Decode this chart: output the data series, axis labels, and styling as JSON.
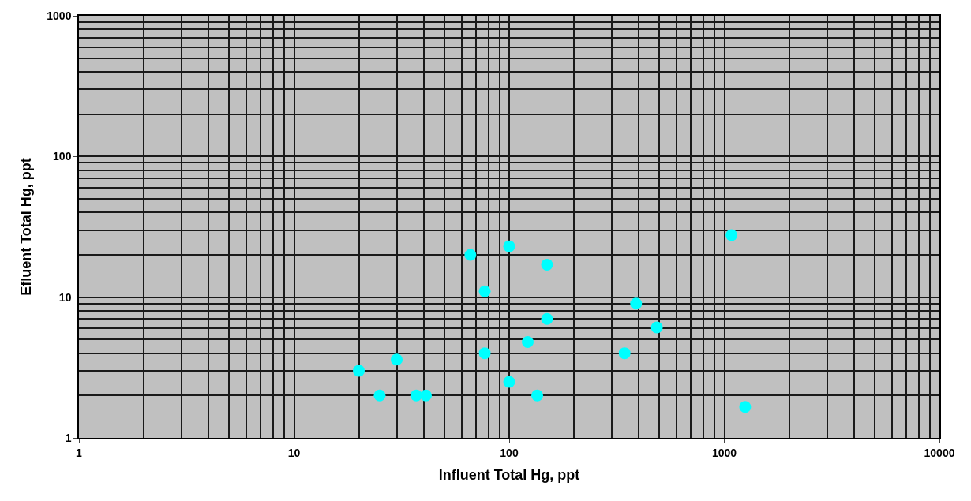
{
  "chart_data": {
    "type": "scatter",
    "xlabel": "Influent Total Hg, ppt",
    "ylabel": "Efluent Total Hg, ppt",
    "log": "xy",
    "grid": true,
    "marker": "circle",
    "xlim": [
      1,
      10000
    ],
    "xticks": [
      1,
      10,
      100,
      1000,
      10000
    ],
    "ylim": [
      1,
      1000
    ],
    "yticks": [
      1,
      10,
      100,
      1000
    ],
    "x": [
      20,
      25,
      30,
      37,
      41,
      66,
      77,
      77,
      100,
      100,
      122,
      135,
      150,
      150,
      344,
      389,
      486,
      1080,
      1250
    ],
    "series": [
      {
        "color": "#00ffff",
        "values": [
          3,
          2,
          3.6,
          2,
          2,
          20,
          11,
          4,
          23,
          2.5,
          4.8,
          2,
          7,
          17,
          4,
          9,
          6.1,
          27.6,
          1.66
        ]
      }
    ]
  }
}
